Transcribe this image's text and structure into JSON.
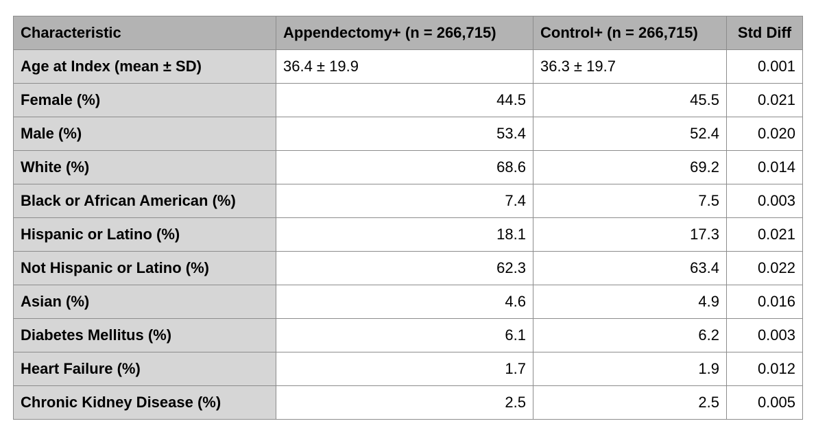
{
  "table": {
    "columns": [
      "Characteristic",
      "Appendectomy+ (n = 266,715)",
      "Control+ (n = 266,715)",
      "Std Diff"
    ],
    "rows": [
      [
        "Age at Index (mean ± SD)",
        "36.4 ± 19.9",
        "36.3 ± 19.7",
        "0.001"
      ],
      [
        "Female (%)",
        "44.5",
        "45.5",
        "0.021"
      ],
      [
        "Male (%)",
        "53.4",
        "52.4",
        "0.020"
      ],
      [
        "White (%)",
        "68.6",
        "69.2",
        "0.014"
      ],
      [
        "Black or African American (%)",
        "7.4",
        "7.5",
        "0.003"
      ],
      [
        "Hispanic or Latino (%)",
        "18.1",
        "17.3",
        "0.021"
      ],
      [
        "Not Hispanic or Latino (%)",
        "62.3",
        "63.4",
        "0.022"
      ],
      [
        "Asian (%)",
        "4.6",
        "4.9",
        "0.016"
      ],
      [
        "Diabetes Mellitus (%)",
        "6.1",
        "6.2",
        "0.003"
      ],
      [
        "Heart Failure (%)",
        "1.7",
        "1.9",
        "0.012"
      ],
      [
        "Chronic Kidney Disease (%)",
        "2.5",
        "2.5",
        "0.005"
      ]
    ]
  }
}
